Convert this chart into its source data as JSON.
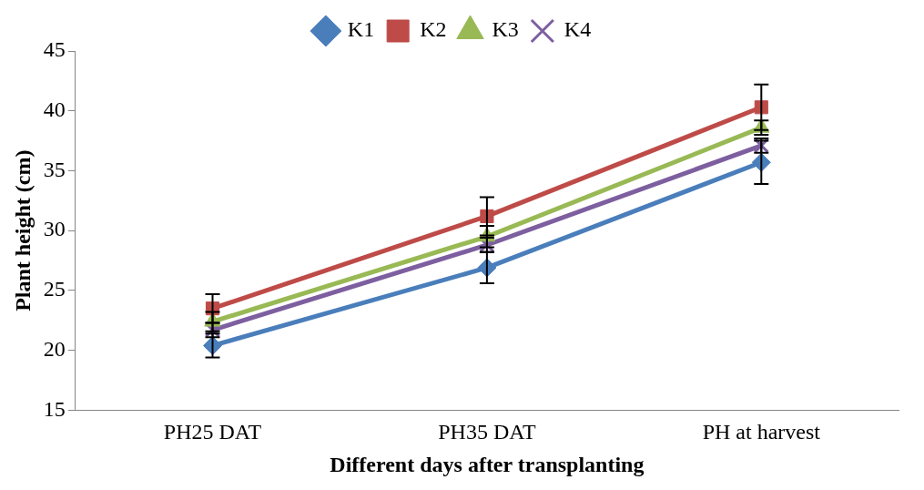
{
  "chart_data": {
    "type": "line",
    "xlabel": "Different days after transplanting",
    "ylabel": "Plant height (cm)",
    "categories": [
      "PH25 DAT",
      "PH35 DAT",
      "PH at harvest"
    ],
    "series": [
      {
        "name": "K1",
        "color": "#4a7ebb",
        "marker": "diamond",
        "values": [
          20.4,
          26.9,
          35.7
        ],
        "errors": [
          1.0,
          1.3,
          1.8
        ]
      },
      {
        "name": "K2",
        "color": "#be4b48",
        "marker": "square",
        "values": [
          23.5,
          31.2,
          40.3
        ],
        "errors": [
          1.2,
          1.6,
          1.9
        ]
      },
      {
        "name": "K3",
        "color": "#98b954",
        "marker": "triangle",
        "values": [
          22.4,
          29.5,
          38.6
        ],
        "errors": [
          0.8,
          0.9,
          0.6
        ]
      },
      {
        "name": "K4",
        "color": "#7d5fa0",
        "marker": "cross",
        "values": [
          21.7,
          28.8,
          37.1
        ],
        "errors": [
          0.6,
          0.6,
          0.6
        ]
      }
    ],
    "ylim": [
      15,
      45
    ],
    "yticks": [
      15,
      20,
      25,
      30,
      35,
      40,
      45
    ],
    "grid": false,
    "legend": "top"
  }
}
